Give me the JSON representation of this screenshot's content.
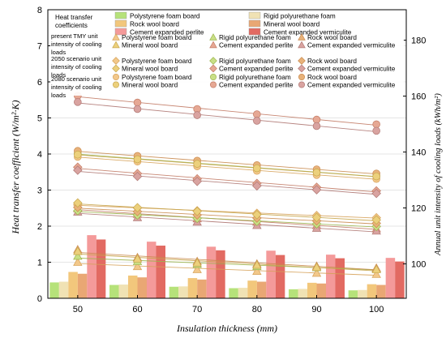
{
  "chart_data": {
    "type": "bar",
    "categories": [
      "50",
      "60",
      "70",
      "80",
      "90",
      "100"
    ],
    "xlabel": "Insulation thickness (mm)",
    "ylabel_left": "Heat transfer coefficient (W/m²·K)",
    "ylabel_right": "Annual unit intensity of cooling loads (kWh/m²)",
    "ylim_left": [
      0,
      8
    ],
    "yticks_left": [
      0,
      1,
      2,
      3,
      4,
      5,
      6,
      7,
      8
    ],
    "ylim_right": [
      87.7,
      190.9
    ],
    "yticks_right": [
      100,
      120,
      140,
      160,
      180
    ],
    "legend": {
      "placement": "top",
      "heat_group_label": "Heat transfer coefficients",
      "present_label": "present TMY unit intensity of cooling loads",
      "s2050_label": "2050 scenario unit intensity of cooling loads",
      "s2080_label": "2080 scenario unit intensity of cooling loads"
    },
    "materials": [
      {
        "name": "Polystyrene foam board",
        "bar_color": "#b6e27a",
        "marker_color": "#f2c88a",
        "marker_edge": "#d6a25a"
      },
      {
        "name": "Rigid polyurethane foam",
        "bar_color": "#f0e2b4",
        "marker_color": "#c9df86",
        "marker_edge": "#9cb54e"
      },
      {
        "name": "Rock wool board",
        "bar_color": "#f2c77c",
        "marker_color": "#e8b27a",
        "marker_edge": "#c98a4e"
      },
      {
        "name": "Mineral wool board",
        "bar_color": "#e9a774",
        "marker_color": "#ecd07c",
        "marker_edge": "#c7a64c"
      },
      {
        "name": "Cement expanded perlite",
        "bar_color": "#f49a9a",
        "marker_color": "#e6a894",
        "marker_edge": "#c27a64"
      },
      {
        "name": "Cement expanded vermiculite",
        "bar_color": "#e26a62",
        "marker_color": "#d9a3a0",
        "marker_edge": "#b07874"
      }
    ],
    "heat_transfer_series": [
      {
        "name": "Polystyrene foam board",
        "values": [
          0.44,
          0.37,
          0.32,
          0.28,
          0.25,
          0.22
        ]
      },
      {
        "name": "Rigid polyurethane foam",
        "values": [
          0.46,
          0.38,
          0.33,
          0.29,
          0.26,
          0.23
        ]
      },
      {
        "name": "Rock wool board",
        "values": [
          0.73,
          0.63,
          0.56,
          0.49,
          0.43,
          0.39
        ]
      },
      {
        "name": "Mineral wool board",
        "values": [
          0.68,
          0.58,
          0.52,
          0.46,
          0.41,
          0.37
        ]
      },
      {
        "name": "Cement expanded perlite",
        "values": [
          1.75,
          1.57,
          1.43,
          1.32,
          1.21,
          1.12
        ]
      },
      {
        "name": "Cement expanded vermiculite",
        "values": [
          1.63,
          1.46,
          1.33,
          1.2,
          1.11,
          1.02
        ]
      }
    ],
    "cooling_load_series": [
      {
        "scenario": "present",
        "marker": "triangle-up",
        "name": "Polystyrene foam board",
        "values": [
          100.6,
          99.1,
          98.0,
          97.4,
          96.7,
          96.3
        ]
      },
      {
        "scenario": "present",
        "marker": "triangle-up",
        "name": "Rigid polyurethane foam",
        "values": [
          102.8,
          100.9,
          99.9,
          99.1,
          98.7,
          98.3
        ]
      },
      {
        "scenario": "present",
        "marker": "triangle-up",
        "name": "Rock wool board",
        "values": [
          105.1,
          102.3,
          100.9,
          100.0,
          99.2,
          98.5
        ]
      },
      {
        "scenario": "present",
        "marker": "triangle-up",
        "name": "Mineral wool board",
        "values": [
          104.5,
          101.8,
          100.4,
          99.6,
          98.8,
          98.0
        ]
      },
      {
        "scenario": "present",
        "marker": "triangle-up",
        "name": "Cement expanded perlite",
        "values": [
          119.8,
          117.8,
          116.2,
          115.0,
          113.8,
          112.6
        ]
      },
      {
        "scenario": "present",
        "marker": "triangle-up",
        "name": "Cement expanded vermiculite",
        "values": [
          118.6,
          116.6,
          115.0,
          113.8,
          112.8,
          111.8
        ]
      },
      {
        "scenario": "2050",
        "marker": "diamond",
        "name": "Polystyrene foam board",
        "values": [
          121.1,
          120.0,
          119.0,
          118.1,
          117.3,
          116.5
        ]
      },
      {
        "scenario": "2050",
        "marker": "diamond",
        "name": "Rigid polyurethane foam",
        "values": [
          119.0,
          117.5,
          116.3,
          115.2,
          114.3,
          113.4
        ]
      },
      {
        "scenario": "2050",
        "marker": "diamond",
        "name": "Rock wool board",
        "values": [
          120.2,
          118.7,
          117.5,
          116.4,
          115.4,
          114.5
        ]
      },
      {
        "scenario": "2050",
        "marker": "diamond",
        "name": "Mineral wool board",
        "values": [
          121.8,
          120.1,
          118.8,
          117.6,
          116.6,
          115.7
        ]
      },
      {
        "scenario": "2050",
        "marker": "diamond",
        "name": "Cement expanded perlite",
        "values": [
          134.6,
          132.3,
          130.4,
          128.8,
          127.4,
          126.1
        ]
      },
      {
        "scenario": "2050",
        "marker": "diamond",
        "name": "Cement expanded vermiculite",
        "values": [
          133.5,
          131.3,
          129.5,
          127.9,
          126.5,
          125.2
        ]
      },
      {
        "scenario": "2080",
        "marker": "circle",
        "name": "Polystyrene foam board",
        "values": [
          138.3,
          136.6,
          134.9,
          133.3,
          131.8,
          130.4
        ]
      },
      {
        "scenario": "2080",
        "marker": "circle",
        "name": "Rigid polyurethane foam",
        "values": [
          139.4,
          137.6,
          135.9,
          134.3,
          132.8,
          131.4
        ]
      },
      {
        "scenario": "2080",
        "marker": "circle",
        "name": "Rock wool board",
        "values": [
          140.4,
          138.6,
          136.9,
          135.3,
          133.8,
          132.3
        ]
      },
      {
        "scenario": "2080",
        "marker": "circle",
        "name": "Mineral wool board",
        "values": [
          139.1,
          137.4,
          135.8,
          134.2,
          132.7,
          131.3
        ]
      },
      {
        "scenario": "2080",
        "marker": "circle",
        "name": "Cement expanded perlite",
        "values": [
          160.1,
          157.7,
          155.4,
          153.5,
          151.6,
          149.9
        ]
      },
      {
        "scenario": "2080",
        "marker": "circle",
        "name": "Cement expanded vermiculite",
        "values": [
          157.9,
          155.4,
          153.2,
          151.2,
          149.3,
          147.6
        ]
      }
    ]
  }
}
